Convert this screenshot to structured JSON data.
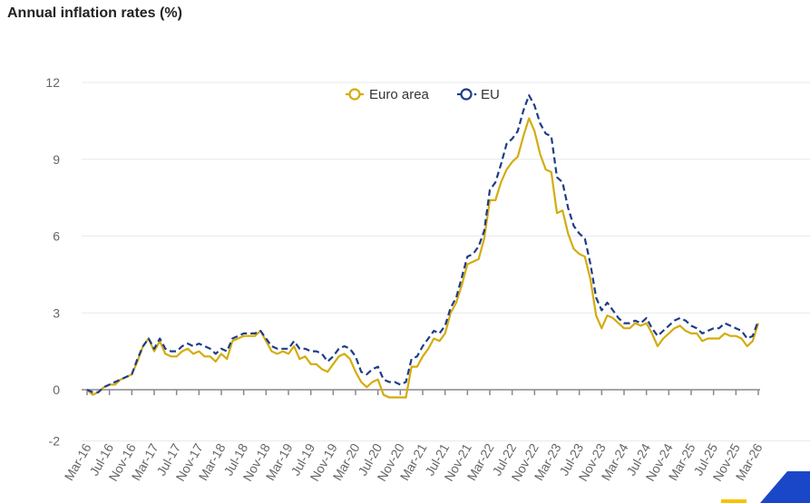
{
  "chart_data": {
    "type": "line",
    "title": "Annual inflation rates (%)",
    "xlabel": "",
    "ylabel": "",
    "ylim": [
      -2,
      12
    ],
    "yticks": [
      -2,
      0,
      3,
      6,
      9,
      12
    ],
    "grid": true,
    "legend_placement": "top-center",
    "x_start": "Mar-16",
    "x_end": "Mar-26",
    "x_tick_labels": [
      "Mar-16",
      "Jul-16",
      "Nov-16",
      "Mar-17",
      "Jul-17",
      "Nov-17",
      "Mar-18",
      "Jul-18",
      "Nov-18",
      "Mar-19",
      "Jul-19",
      "Nov-19",
      "Mar-20",
      "Jul-20",
      "Nov-20",
      "Mar-21",
      "Jul-21",
      "Nov-21",
      "Mar-22",
      "Jul-22",
      "Nov-22",
      "Mar-23",
      "Jul-23",
      "Nov-23",
      "Mar-24",
      "Jul-24",
      "Nov-24",
      "Mar-25",
      "Jul-25",
      "Nov-25",
      "Mar-26"
    ],
    "series": [
      {
        "name": "Euro area",
        "color": "#d4ac0d",
        "style": "solid",
        "values": [
          0.0,
          -0.2,
          -0.1,
          0.1,
          0.2,
          0.2,
          0.4,
          0.5,
          0.6,
          1.1,
          1.7,
          2.0,
          1.5,
          1.9,
          1.4,
          1.3,
          1.3,
          1.5,
          1.6,
          1.4,
          1.5,
          1.3,
          1.3,
          1.1,
          1.4,
          1.2,
          1.9,
          2.0,
          2.1,
          2.1,
          2.1,
          2.3,
          1.9,
          1.5,
          1.4,
          1.5,
          1.4,
          1.7,
          1.2,
          1.3,
          1.0,
          1.0,
          0.8,
          0.7,
          1.0,
          1.3,
          1.4,
          1.2,
          0.7,
          0.3,
          0.1,
          0.3,
          0.4,
          -0.2,
          -0.3,
          -0.3,
          -0.3,
          -0.3,
          0.9,
          0.9,
          1.3,
          1.6,
          2.0,
          1.9,
          2.2,
          3.0,
          3.4,
          4.1,
          4.9,
          5.0,
          5.1,
          5.9,
          7.4,
          7.4,
          8.1,
          8.6,
          8.9,
          9.1,
          9.9,
          10.6,
          10.1,
          9.2,
          8.6,
          8.5,
          6.9,
          7.0,
          6.1,
          5.5,
          5.3,
          5.2,
          4.3,
          2.9,
          2.4,
          2.9,
          2.8,
          2.6,
          2.4,
          2.4,
          2.6,
          2.5,
          2.6,
          2.2,
          1.7,
          2.0,
          2.2,
          2.4,
          2.5,
          2.3,
          2.2,
          2.2,
          1.9,
          2.0,
          2.0,
          2.0,
          2.2,
          2.1,
          2.1,
          2.0,
          1.7,
          1.9,
          2.6
        ]
      },
      {
        "name": "EU",
        "color": "#1f3c88",
        "style": "dashed",
        "values": [
          0.0,
          -0.1,
          -0.1,
          0.1,
          0.2,
          0.3,
          0.4,
          0.5,
          0.6,
          1.2,
          1.7,
          2.0,
          1.6,
          2.0,
          1.6,
          1.5,
          1.5,
          1.7,
          1.8,
          1.7,
          1.8,
          1.7,
          1.6,
          1.4,
          1.6,
          1.5,
          2.0,
          2.1,
          2.2,
          2.2,
          2.2,
          2.3,
          2.0,
          1.7,
          1.6,
          1.6,
          1.6,
          1.9,
          1.6,
          1.6,
          1.5,
          1.5,
          1.4,
          1.1,
          1.3,
          1.6,
          1.7,
          1.6,
          1.3,
          0.7,
          0.6,
          0.8,
          0.9,
          0.4,
          0.3,
          0.3,
          0.2,
          0.3,
          1.2,
          1.3,
          1.7,
          2.0,
          2.3,
          2.2,
          2.5,
          3.2,
          3.6,
          4.4,
          5.2,
          5.3,
          5.6,
          6.2,
          7.8,
          8.1,
          8.8,
          9.6,
          9.8,
          10.1,
          10.9,
          11.5,
          11.1,
          10.4,
          10.0,
          9.9,
          8.3,
          8.1,
          7.1,
          6.4,
          6.1,
          5.9,
          4.9,
          3.6,
          3.1,
          3.4,
          3.1,
          2.8,
          2.6,
          2.6,
          2.7,
          2.6,
          2.8,
          2.4,
          2.1,
          2.3,
          2.5,
          2.7,
          2.8,
          2.7,
          2.5,
          2.4,
          2.2,
          2.3,
          2.4,
          2.4,
          2.6,
          2.5,
          2.4,
          2.3,
          2.0,
          2.1,
          2.7
        ]
      }
    ]
  },
  "decor": {
    "corner_accent_blue": "#1a47c8",
    "corner_accent_yellow": "#f5c400"
  }
}
